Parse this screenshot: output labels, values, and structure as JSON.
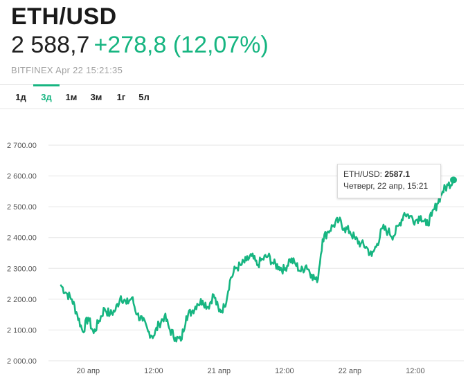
{
  "header": {
    "pair": "ETH/USD",
    "price": "2 588,7",
    "change": "+278,8 (12,07%)",
    "source": "BITFINEX Apr 22 15:21:35"
  },
  "tabs": [
    {
      "label": "1д"
    },
    {
      "label": "3д",
      "active": true
    },
    {
      "label": "1м"
    },
    {
      "label": "3м"
    },
    {
      "label": "1г"
    },
    {
      "label": "5л"
    }
  ],
  "tooltip": {
    "label": "ETH/USD:",
    "value": "2587.1",
    "date": "Четверг, 22 апр, 15:21"
  },
  "colors": {
    "line": "#17b581",
    "up": "#17b581",
    "grid": "#e6e6e6"
  },
  "chart_data": {
    "type": "line",
    "series": [
      {
        "x_hours": [
          0,
          1,
          2,
          3,
          4,
          5,
          6,
          7,
          8,
          9,
          10,
          11,
          12,
          13,
          14,
          15,
          16,
          17,
          18,
          19,
          20,
          21,
          22,
          23,
          24,
          25,
          26,
          27,
          28,
          29,
          30,
          31,
          32,
          33,
          34,
          35,
          36,
          37,
          38,
          39,
          40,
          41,
          42,
          43,
          44,
          45,
          46,
          47,
          48,
          49,
          50,
          51,
          52,
          53,
          54,
          55,
          56,
          57,
          58,
          59,
          60,
          61,
          62,
          63,
          64,
          65,
          66,
          67,
          68,
          69,
          70,
          71,
          72
        ],
        "y": [
          2245,
          2220,
          2200,
          2150,
          2095,
          2140,
          2090,
          2130,
          2170,
          2150,
          2165,
          2210,
          2185,
          2205,
          2150,
          2130,
          2095,
          2080,
          2120,
          2145,
          2100,
          2075,
          2065,
          2145,
          2160,
          2185,
          2195,
          2175,
          2215,
          2160,
          2175,
          2260,
          2300,
          2310,
          2325,
          2340,
          2310,
          2330,
          2340,
          2315,
          2305,
          2295,
          2330,
          2315,
          2290,
          2310,
          2280,
          2255,
          2395,
          2420,
          2440,
          2455,
          2430,
          2420,
          2395,
          2380,
          2370,
          2340,
          2380,
          2430,
          2420,
          2405,
          2440,
          2480,
          2470,
          2455,
          2470,
          2440,
          2470,
          2510,
          2550,
          2570,
          2587.1
        ]
      }
    ],
    "ylim": [
      2000,
      2700
    ],
    "yticks": [
      "2 000.00",
      "2 100.00",
      "2 200.00",
      "2 300.00",
      "2 400.00",
      "2 500.00",
      "2 600.00",
      "2 700.00"
    ],
    "xticks": [
      {
        "label": "20 апр",
        "hour": 5
      },
      {
        "label": "12:00",
        "hour": 17
      },
      {
        "label": "21 апр",
        "hour": 29
      },
      {
        "label": "12:00",
        "hour": 41
      },
      {
        "label": "22 апр",
        "hour": 53
      },
      {
        "label": "12:00",
        "hour": 65
      }
    ],
    "grid": true,
    "last_point": {
      "x_hour": 72,
      "y": 2587.1
    }
  }
}
